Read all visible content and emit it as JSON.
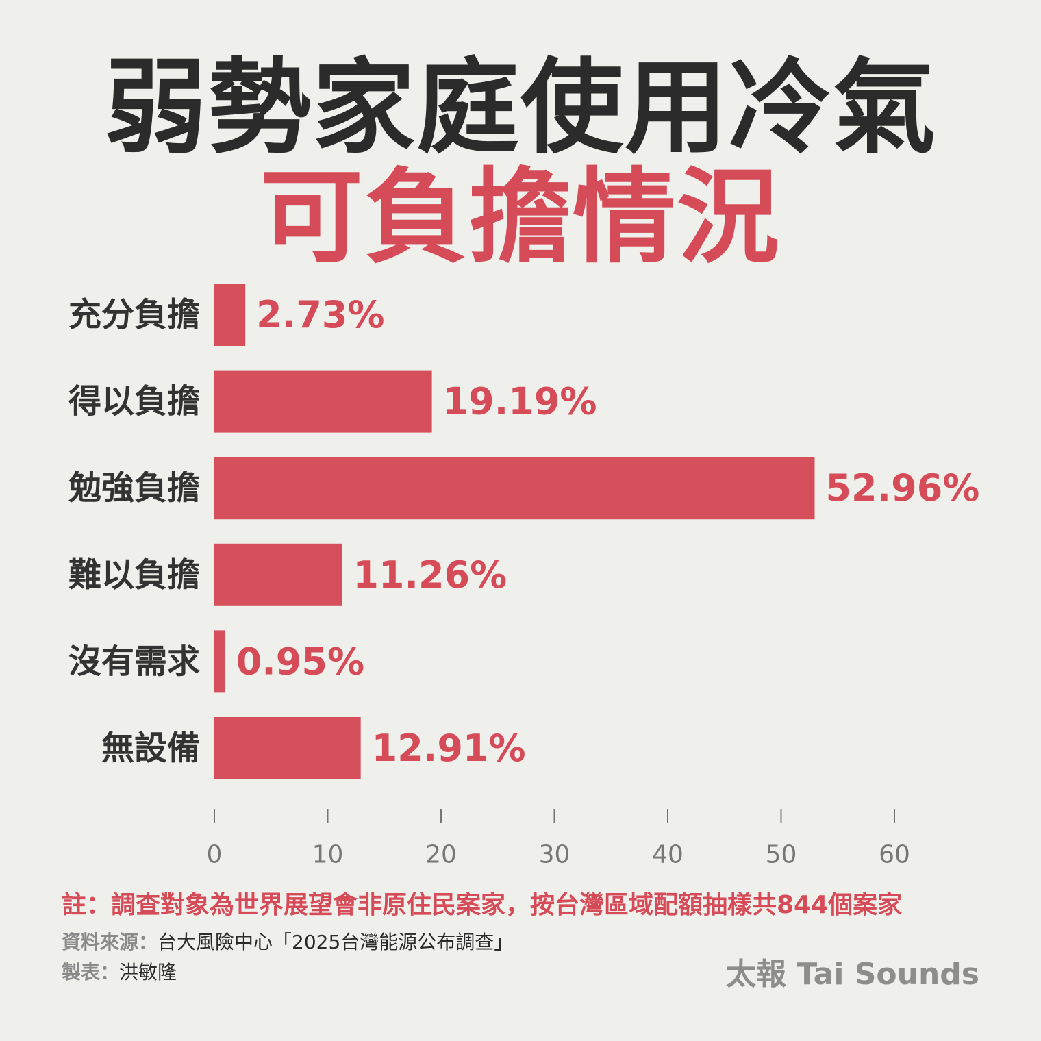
{
  "title": {
    "line1": "弱勢家庭使用冷氣",
    "line2": "可負擔情況"
  },
  "colors": {
    "bar": "#d6505b",
    "value_label": "#d64b58",
    "category_label": "#333333",
    "axis": "#777777",
    "background": "#efefeb"
  },
  "chart_data": {
    "type": "bar",
    "orientation": "horizontal",
    "categories": [
      "充分負擔",
      "得以負擔",
      "勉強負擔",
      "難以負擔",
      "沒有需求",
      "無設備"
    ],
    "values": [
      2.73,
      19.19,
      52.96,
      11.26,
      0.95,
      12.91
    ],
    "value_labels": [
      "2.73%",
      "19.19%",
      "52.96%",
      "11.26%",
      "0.95%",
      "12.91%"
    ],
    "xlim": [
      0,
      60
    ],
    "xticks": [
      0,
      10,
      20,
      30,
      40,
      50,
      60
    ],
    "grid": false
  },
  "note": "註：調查對象為世界展望會非原住民案家，按台灣區域配額抽樣共844個案家",
  "source": {
    "label": "資料來源：",
    "text": "台大風險中心「2025台灣能源公布調查」"
  },
  "credit": {
    "label": "製表：",
    "text": "洪敏隆"
  },
  "brand": "太報 Tai Sounds"
}
